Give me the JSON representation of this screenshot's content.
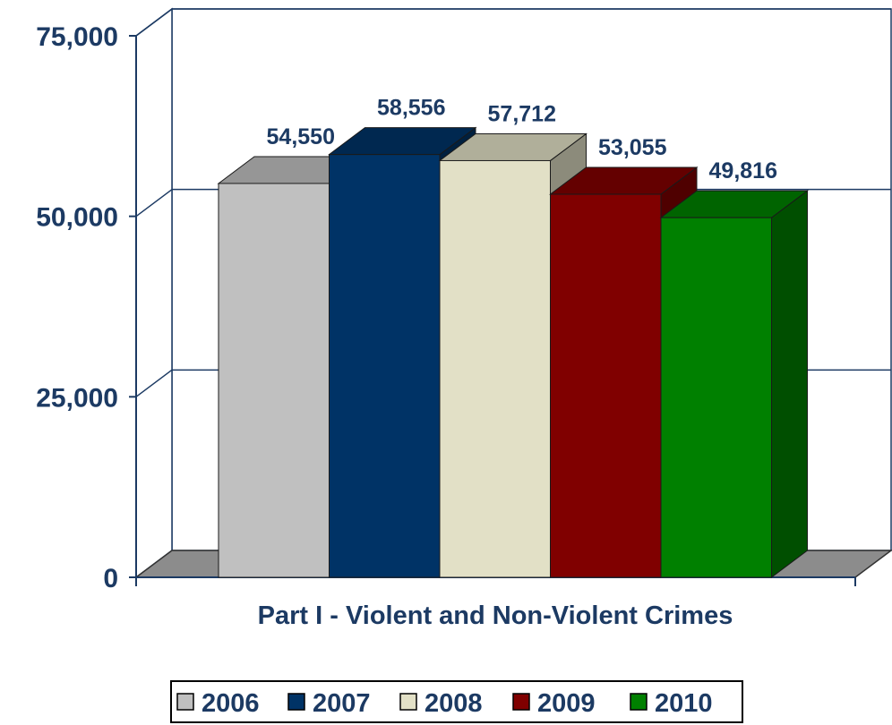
{
  "chart_data": {
    "type": "bar",
    "style": "3d-clustered-column",
    "title": "",
    "xlabel": "",
    "ylabel": "",
    "categories": [
      "Part I - Violent and Non-Violent Crimes"
    ],
    "ylim": [
      0,
      75000
    ],
    "y_ticks": [
      {
        "value": 0,
        "label": "0"
      },
      {
        "value": 25000,
        "label": "25,000"
      },
      {
        "value": 50000,
        "label": "50,000"
      },
      {
        "value": 75000,
        "label": "75,000"
      }
    ],
    "grid": true,
    "legend_position": "bottom",
    "series": [
      {
        "name": "2006",
        "values": [
          54550
        ],
        "label": "54,550",
        "color": "#c0c0c0"
      },
      {
        "name": "2007",
        "values": [
          58556
        ],
        "label": "58,556",
        "color": "#003366"
      },
      {
        "name": "2008",
        "values": [
          57712
        ],
        "label": "57,712",
        "color": "#e2e0c6"
      },
      {
        "name": "2009",
        "values": [
          53055
        ],
        "label": "53,055",
        "color": "#800000"
      },
      {
        "name": "2010",
        "values": [
          49816
        ],
        "label": "49,816",
        "color": "#008000"
      }
    ],
    "colors": {
      "text": "#1c3a63",
      "axis": "#1c3a63",
      "floor": "#8c8c8c"
    }
  }
}
